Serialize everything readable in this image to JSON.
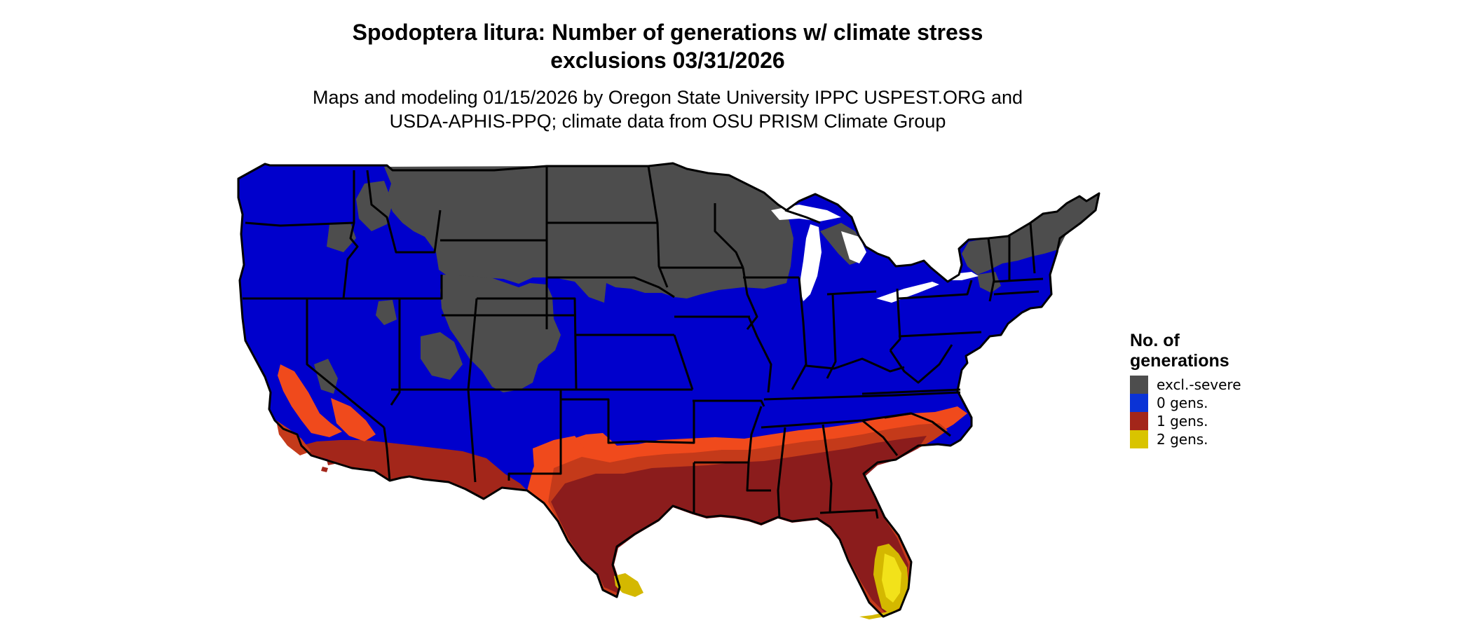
{
  "title_line1": "Spodoptera litura: Number of generations w/ climate stress",
  "title_line2": "exclusions 03/31/2026",
  "subtitle_line1": "Maps and modeling 01/15/2026 by Oregon State University IPPC USPEST.ORG and",
  "subtitle_line2": "USDA-APHIS-PPQ; climate data from OSU PRISM Climate Group",
  "legend": {
    "title": "No. of generations",
    "items": [
      {
        "label": "excl.-severe",
        "color": "#4d4d4d"
      },
      {
        "label": "0 gens.",
        "color": "#0a33d6"
      },
      {
        "label": "1 gens.",
        "color": "#a3261a"
      },
      {
        "label": "2 gens.",
        "color": "#d9c400"
      }
    ]
  },
  "map_colors": {
    "severe": "#4d4d4d",
    "zero": "#0000cc",
    "one_dark": "#8b1c1c",
    "one_mid": "#c43a1a",
    "one_light": "#f04a1c",
    "two": "#d4b800",
    "two_light": "#f2e21a",
    "border": "#000000"
  }
}
